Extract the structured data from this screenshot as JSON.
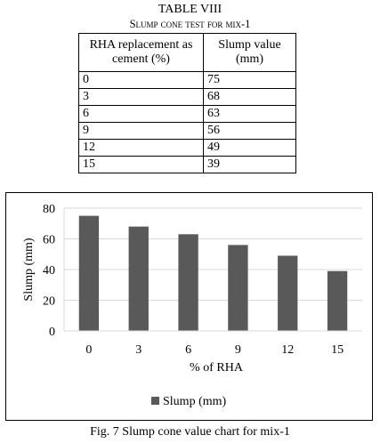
{
  "table": {
    "title": "TABLE VIII",
    "subtitle": "Slump cone test for mix-1",
    "headers": [
      "RHA replacement as cement (%)",
      "Slump value (mm)"
    ],
    "rows": [
      [
        "0",
        "75"
      ],
      [
        "3",
        "68"
      ],
      [
        "6",
        "63"
      ],
      [
        "9",
        "56"
      ],
      [
        "12",
        "49"
      ],
      [
        "15",
        "39"
      ]
    ]
  },
  "chart_data": {
    "type": "bar",
    "categories": [
      "0",
      "3",
      "6",
      "9",
      "12",
      "15"
    ],
    "series": [
      {
        "name": "Slump (mm)",
        "values": [
          75,
          68,
          63,
          56,
          49,
          39
        ]
      }
    ],
    "title": "",
    "xlabel": "% of  RHA",
    "ylabel": "Slump (mm)",
    "ylim": [
      0,
      80
    ],
    "yticks": [
      0,
      20,
      40,
      60,
      80
    ],
    "grid": true,
    "legend": "bottom",
    "bar_color": "#595959"
  },
  "caption": "Fig. 7 Slump cone value chart for mix-1"
}
